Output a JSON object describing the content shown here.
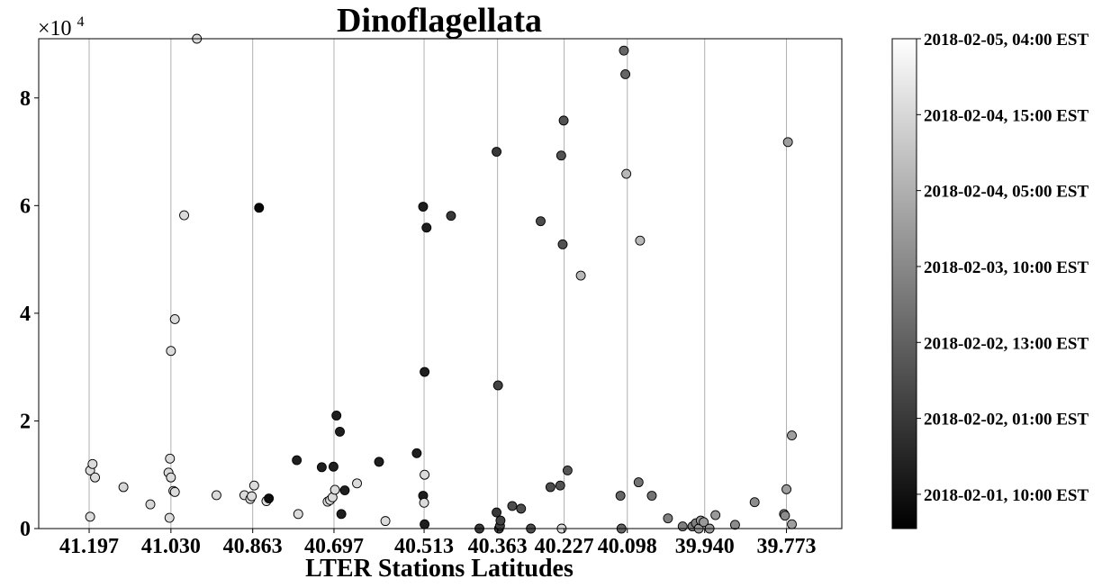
{
  "chart_data": {
    "type": "scatter",
    "title": "Dinoflagellata",
    "xlabel": "LTER Stations Latitudes",
    "ylabel": "",
    "y_multiplier_label": "×10",
    "y_multiplier_exponent": "4",
    "x_reversed": true,
    "xlim": [
      41.3,
      39.66
    ],
    "ylim": [
      0,
      91000
    ],
    "grid": "vertical",
    "x_ticks": [
      41.197,
      41.03,
      40.863,
      40.697,
      40.513,
      40.363,
      40.227,
      40.098,
      39.94,
      39.773
    ],
    "x_tick_labels": [
      "41.197",
      "41.030",
      "40.863",
      "40.697",
      "40.513",
      "40.363",
      "40.227",
      "40.098",
      "39.940",
      "39.773"
    ],
    "y_ticks": [
      0,
      20000,
      40000,
      60000,
      80000
    ],
    "y_tick_labels": [
      "0",
      "2",
      "4",
      "6",
      "8"
    ],
    "colorbar": {
      "position": "right",
      "colormap": "gray",
      "ticks": [
        {
          "label": "2018-02-05, 04:00 EST",
          "t": 1.0
        },
        {
          "label": "2018-02-04, 15:00 EST",
          "t": 0.845
        },
        {
          "label": "2018-02-04, 05:00 EST",
          "t": 0.69
        },
        {
          "label": "2018-02-03, 10:00 EST",
          "t": 0.535
        },
        {
          "label": "2018-02-02, 13:00 EST",
          "t": 0.38
        },
        {
          "label": "2018-02-02, 01:00 EST",
          "t": 0.225
        },
        {
          "label": "2018-02-01, 10:00 EST",
          "t": 0.07
        }
      ]
    },
    "points": [
      {
        "x": 41.195,
        "y": 2200,
        "c": 0.86
      },
      {
        "x": 41.195,
        "y": 10800,
        "c": 0.86
      },
      {
        "x": 41.19,
        "y": 12000,
        "c": 0.86
      },
      {
        "x": 41.185,
        "y": 9500,
        "c": 0.86
      },
      {
        "x": 41.127,
        "y": 7700,
        "c": 0.84
      },
      {
        "x": 41.072,
        "y": 4500,
        "c": 0.84
      },
      {
        "x": 41.033,
        "y": 2000,
        "c": 0.86
      },
      {
        "x": 41.035,
        "y": 10400,
        "c": 0.86
      },
      {
        "x": 41.032,
        "y": 13000,
        "c": 0.86
      },
      {
        "x": 41.03,
        "y": 9500,
        "c": 0.86
      },
      {
        "x": 41.03,
        "y": 33000,
        "c": 0.86
      },
      {
        "x": 41.025,
        "y": 7000,
        "c": 0.86
      },
      {
        "x": 41.022,
        "y": 6800,
        "c": 0.86
      },
      {
        "x": 41.022,
        "y": 38900,
        "c": 0.86
      },
      {
        "x": 41.003,
        "y": 58200,
        "c": 0.86
      },
      {
        "x": 40.977,
        "y": 91000,
        "c": 0.86
      },
      {
        "x": 40.937,
        "y": 6200,
        "c": 0.86
      },
      {
        "x": 40.88,
        "y": 6200,
        "c": 0.86
      },
      {
        "x": 40.868,
        "y": 5500,
        "c": 0.86
      },
      {
        "x": 40.865,
        "y": 6000,
        "c": 0.86
      },
      {
        "x": 40.86,
        "y": 8000,
        "c": 0.86
      },
      {
        "x": 40.85,
        "y": 59600,
        "c": 0.03
      },
      {
        "x": 40.835,
        "y": 5100,
        "c": 0.86
      },
      {
        "x": 40.83,
        "y": 5600,
        "c": 0.05
      },
      {
        "x": 40.773,
        "y": 12700,
        "c": 0.12
      },
      {
        "x": 40.77,
        "y": 2700,
        "c": 0.86
      },
      {
        "x": 40.722,
        "y": 11400,
        "c": 0.12
      },
      {
        "x": 40.71,
        "y": 5000,
        "c": 0.86
      },
      {
        "x": 40.705,
        "y": 5300,
        "c": 0.86
      },
      {
        "x": 40.7,
        "y": 5800,
        "c": 0.86
      },
      {
        "x": 40.698,
        "y": 11500,
        "c": 0.12
      },
      {
        "x": 40.695,
        "y": 7200,
        "c": 0.86
      },
      {
        "x": 40.692,
        "y": 21000,
        "c": 0.12
      },
      {
        "x": 40.685,
        "y": 18000,
        "c": 0.12
      },
      {
        "x": 40.682,
        "y": 2700,
        "c": 0.12
      },
      {
        "x": 40.675,
        "y": 7100,
        "c": 0.12
      },
      {
        "x": 40.65,
        "y": 8400,
        "c": 0.86
      },
      {
        "x": 40.605,
        "y": 12400,
        "c": 0.12
      },
      {
        "x": 40.592,
        "y": 1400,
        "c": 0.86
      },
      {
        "x": 40.528,
        "y": 14000,
        "c": 0.12
      },
      {
        "x": 40.515,
        "y": 6100,
        "c": 0.12
      },
      {
        "x": 40.515,
        "y": 59800,
        "c": 0.12
      },
      {
        "x": 40.513,
        "y": 4800,
        "c": 0.86
      },
      {
        "x": 40.512,
        "y": 29100,
        "c": 0.12
      },
      {
        "x": 40.512,
        "y": 800,
        "c": 0.12
      },
      {
        "x": 40.512,
        "y": 10000,
        "c": 0.86
      },
      {
        "x": 40.508,
        "y": 55900,
        "c": 0.12
      },
      {
        "x": 40.458,
        "y": 58100,
        "c": 0.22
      },
      {
        "x": 40.4,
        "y": 0,
        "c": 0.22
      },
      {
        "x": 40.365,
        "y": 70000,
        "c": 0.22
      },
      {
        "x": 40.365,
        "y": 3000,
        "c": 0.22
      },
      {
        "x": 40.362,
        "y": 26600,
        "c": 0.26
      },
      {
        "x": 40.36,
        "y": 0,
        "c": 0.26
      },
      {
        "x": 40.358,
        "y": 500,
        "c": 0.26
      },
      {
        "x": 40.357,
        "y": 1500,
        "c": 0.26
      },
      {
        "x": 40.333,
        "y": 4200,
        "c": 0.3
      },
      {
        "x": 40.315,
        "y": 3700,
        "c": 0.3
      },
      {
        "x": 40.295,
        "y": 0,
        "c": 0.3
      },
      {
        "x": 40.275,
        "y": 57100,
        "c": 0.3
      },
      {
        "x": 40.255,
        "y": 7700,
        "c": 0.3
      },
      {
        "x": 40.235,
        "y": 8000,
        "c": 0.32
      },
      {
        "x": 40.233,
        "y": 69300,
        "c": 0.32
      },
      {
        "x": 40.23,
        "y": 52800,
        "c": 0.32
      },
      {
        "x": 40.228,
        "y": 75800,
        "c": 0.32
      },
      {
        "x": 40.232,
        "y": 0,
        "c": 0.86
      },
      {
        "x": 40.22,
        "y": 10800,
        "c": 0.34
      },
      {
        "x": 40.193,
        "y": 47000,
        "c": 0.72
      },
      {
        "x": 40.112,
        "y": 6100,
        "c": 0.4
      },
      {
        "x": 40.11,
        "y": 0,
        "c": 0.4
      },
      {
        "x": 40.105,
        "y": 88800,
        "c": 0.4
      },
      {
        "x": 40.102,
        "y": 84400,
        "c": 0.4
      },
      {
        "x": 40.1,
        "y": 65900,
        "c": 0.72
      },
      {
        "x": 40.075,
        "y": 8600,
        "c": 0.45
      },
      {
        "x": 40.072,
        "y": 53500,
        "c": 0.72
      },
      {
        "x": 40.048,
        "y": 6100,
        "c": 0.45
      },
      {
        "x": 40.015,
        "y": 1900,
        "c": 0.5
      },
      {
        "x": 39.985,
        "y": 400,
        "c": 0.5
      },
      {
        "x": 39.965,
        "y": 400,
        "c": 0.5
      },
      {
        "x": 39.958,
        "y": 1000,
        "c": 0.5
      },
      {
        "x": 39.952,
        "y": 0,
        "c": 0.6
      },
      {
        "x": 39.948,
        "y": 1500,
        "c": 0.6
      },
      {
        "x": 39.942,
        "y": 1200,
        "c": 0.6
      },
      {
        "x": 39.93,
        "y": 0,
        "c": 0.6
      },
      {
        "x": 39.918,
        "y": 2500,
        "c": 0.6
      },
      {
        "x": 39.878,
        "y": 700,
        "c": 0.55
      },
      {
        "x": 39.838,
        "y": 4900,
        "c": 0.55
      },
      {
        "x": 39.778,
        "y": 2700,
        "c": 0.55
      },
      {
        "x": 39.776,
        "y": 2400,
        "c": 0.55
      },
      {
        "x": 39.773,
        "y": 7300,
        "c": 0.62
      },
      {
        "x": 39.77,
        "y": 71800,
        "c": 0.62
      },
      {
        "x": 39.762,
        "y": 17300,
        "c": 0.62
      },
      {
        "x": 39.762,
        "y": 800,
        "c": 0.62
      }
    ]
  }
}
